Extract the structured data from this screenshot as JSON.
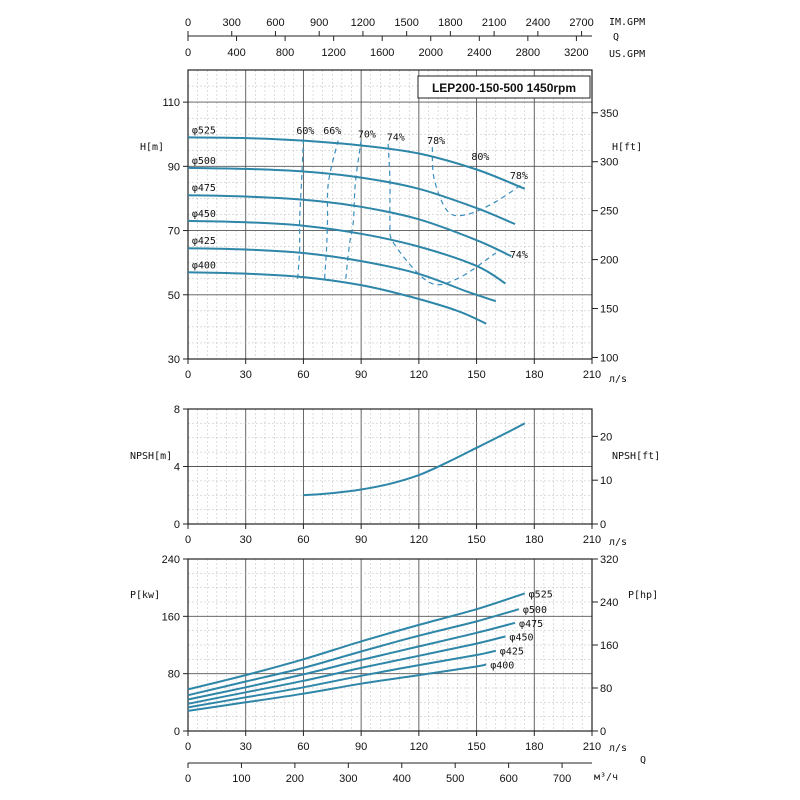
{
  "chart_data": {
    "type": "line",
    "title": "LEP200-150-500 1450rpm",
    "q_axis": {
      "label": "Q",
      "main_unit": "л/s",
      "main_ticks": [
        0,
        30,
        60,
        90,
        120,
        150,
        180,
        210
      ],
      "xlim": [
        0,
        210
      ],
      "img_unit": "IM.GPM",
      "img_ticks": [
        0,
        300,
        600,
        900,
        1200,
        1500,
        1800,
        2100,
        2400,
        2700
      ],
      "us_unit": "US.GPM",
      "us_ticks": [
        0,
        400,
        800,
        1200,
        1600,
        2000,
        2400,
        2800,
        3200
      ],
      "m3h_unit": "м³/ч",
      "m3h_ticks": [
        0,
        100,
        200,
        300,
        400,
        500,
        600,
        700
      ]
    },
    "head_panel": {
      "ylabel": "H[m]",
      "ylabel_right": "H[ft]",
      "ylim": [
        30,
        120
      ],
      "y_ticks": [
        30,
        50,
        70,
        90,
        110
      ],
      "ft_ticks": [
        100,
        150,
        200,
        250,
        300,
        350
      ],
      "series": [
        {
          "name": "φ525",
          "x": [
            0,
            30,
            60,
            90,
            120,
            150,
            175
          ],
          "y": [
            99,
            98.8,
            98,
            96.5,
            94,
            89,
            83
          ]
        },
        {
          "name": "φ500",
          "x": [
            0,
            30,
            60,
            90,
            120,
            150,
            170
          ],
          "y": [
            89.5,
            89.2,
            88.4,
            86.5,
            83,
            77,
            72
          ]
        },
        {
          "name": "φ475",
          "x": [
            0,
            30,
            60,
            90,
            120,
            150,
            168
          ],
          "y": [
            81,
            80.6,
            79.6,
            77.4,
            73.5,
            67,
            62
          ]
        },
        {
          "name": "φ450",
          "x": [
            0,
            30,
            60,
            90,
            120,
            150,
            165
          ],
          "y": [
            73,
            72.6,
            71.5,
            69,
            65,
            59,
            53.5
          ]
        },
        {
          "name": "φ425",
          "x": [
            0,
            30,
            60,
            90,
            120,
            145,
            160
          ],
          "y": [
            64.5,
            64.1,
            63,
            60.5,
            56.5,
            51,
            48
          ]
        },
        {
          "name": "φ400",
          "x": [
            0,
            30,
            60,
            90,
            115,
            140,
            155
          ],
          "y": [
            57,
            56.6,
            55.5,
            53,
            49.5,
            45,
            41
          ]
        }
      ],
      "efficiency": [
        {
          "name": "60%",
          "x": [
            57,
            58,
            58,
            59,
            60
          ],
          "y": [
            55,
            64,
            73,
            85,
            98
          ]
        },
        {
          "name": "66%",
          "x": [
            71,
            72,
            72.5,
            73,
            78
          ],
          "y": [
            55,
            64,
            73,
            85,
            98
          ]
        },
        {
          "name": "70%",
          "x": [
            82,
            84,
            86,
            87,
            90
          ],
          "y": [
            55,
            66,
            73,
            85,
            98
          ]
        },
        {
          "name": "74%",
          "x": [
            104,
            105,
            105,
            107,
            125,
            140,
            160
          ],
          "y": [
            97,
            85,
            73,
            66,
            54,
            55,
            63
          ]
        },
        {
          "name": "78%",
          "x": [
            127,
            128,
            135,
            145,
            160,
            175
          ],
          "y": [
            96,
            86,
            76,
            75,
            79,
            85
          ]
        }
      ],
      "efficiency_labels": [
        {
          "text": "60%",
          "x": 61,
          "y": 100
        },
        {
          "text": "66%",
          "x": 75,
          "y": 100
        },
        {
          "text": "70%",
          "x": 93,
          "y": 99
        },
        {
          "text": "74%",
          "x": 108,
          "y": 98
        },
        {
          "text": "78%",
          "x": 129,
          "y": 97
        },
        {
          "text": "80%",
          "x": 152,
          "y": 92
        },
        {
          "text": "78%",
          "x": 172,
          "y": 86
        },
        {
          "text": "74%",
          "x": 172,
          "y": 61.5
        }
      ]
    },
    "npsh_panel": {
      "ylabel": "NPSH[m]",
      "ylabel_right": "NPSH[ft]",
      "ylim": [
        0,
        8
      ],
      "y_ticks": [
        0,
        4,
        8
      ],
      "ft_ticks": [
        0,
        10,
        20
      ],
      "series": [
        {
          "name": "NPSH",
          "x": [
            60,
            75,
            90,
            105,
            120,
            135,
            150,
            165,
            175
          ],
          "y": [
            2,
            2.15,
            2.4,
            2.8,
            3.4,
            4.3,
            5.3,
            6.3,
            7
          ]
        }
      ]
    },
    "power_panel": {
      "ylabel": "P[kw]",
      "ylabel_right": "P[hp]",
      "ylim": [
        0,
        240
      ],
      "y_ticks": [
        0,
        80,
        160,
        240
      ],
      "hp_ticks": [
        0,
        80,
        160,
        240,
        320
      ],
      "series": [
        {
          "name": "φ525",
          "x": [
            0,
            30,
            60,
            90,
            120,
            150,
            175
          ],
          "y": [
            58,
            78,
            100,
            125,
            148,
            170,
            192
          ]
        },
        {
          "name": "φ500",
          "x": [
            0,
            30,
            60,
            90,
            120,
            150,
            172
          ],
          "y": [
            50,
            69,
            88,
            111,
            133,
            153,
            170
          ]
        },
        {
          "name": "φ475",
          "x": [
            0,
            30,
            60,
            90,
            120,
            150,
            170
          ],
          "y": [
            44,
            61,
            79,
            99,
            118,
            137,
            151
          ]
        },
        {
          "name": "φ450",
          "x": [
            0,
            30,
            60,
            90,
            120,
            150,
            165
          ],
          "y": [
            38,
            54,
            70,
            88,
            105,
            122,
            132
          ]
        },
        {
          "name": "φ425",
          "x": [
            0,
            30,
            60,
            90,
            120,
            150,
            160
          ],
          "y": [
            33,
            47,
            61,
            77,
            92,
            106,
            112
          ]
        },
        {
          "name": "φ400",
          "x": [
            0,
            30,
            60,
            90,
            120,
            150,
            155
          ],
          "y": [
            28,
            40,
            52,
            66,
            78,
            90,
            93
          ]
        }
      ]
    }
  }
}
